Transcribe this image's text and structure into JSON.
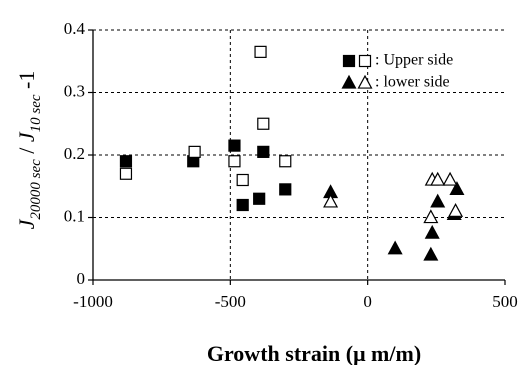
{
  "chart_data": {
    "type": "scatter",
    "xlabel": "Growth strain (μ m/m)",
    "ylabel_parts": [
      "J",
      "20000 sec",
      " / ",
      "J",
      "10 sec",
      " -1"
    ],
    "xlim": [
      -1000,
      500
    ],
    "ylim": [
      0,
      0.4
    ],
    "x_ticks": [
      -1000,
      -500,
      0,
      500
    ],
    "x_tick_labels": [
      "-1000",
      "-500",
      "0",
      "500"
    ],
    "y_ticks": [
      0,
      0.1,
      0.2,
      0.3,
      0.4
    ],
    "y_tick_labels": [
      "0",
      "0.1",
      "0.2",
      "0.3",
      "0.4"
    ],
    "grid": "dashed",
    "legend_position": "top-right",
    "legend": [
      {
        "label": ": Upper side",
        "markers": [
          "square-filled",
          "square-open"
        ]
      },
      {
        "label": ": lower side",
        "markers": [
          "triangle-filled",
          "triangle-open"
        ]
      }
    ],
    "series": [
      {
        "name": "Upper side (filled)",
        "marker": "square-filled",
        "points": [
          {
            "x": -880,
            "y": 0.19
          },
          {
            "x": -635,
            "y": 0.19
          },
          {
            "x": -485,
            "y": 0.215
          },
          {
            "x": -455,
            "y": 0.12
          },
          {
            "x": -395,
            "y": 0.13
          },
          {
            "x": -380,
            "y": 0.205
          },
          {
            "x": -300,
            "y": 0.145
          }
        ]
      },
      {
        "name": "Upper side (open)",
        "marker": "square-open",
        "points": [
          {
            "x": -880,
            "y": 0.17
          },
          {
            "x": -630,
            "y": 0.205
          },
          {
            "x": -485,
            "y": 0.19
          },
          {
            "x": -455,
            "y": 0.16
          },
          {
            "x": -390,
            "y": 0.365
          },
          {
            "x": -380,
            "y": 0.25
          },
          {
            "x": -300,
            "y": 0.19
          }
        ]
      },
      {
        "name": "Lower side (filled)",
        "marker": "triangle-filled",
        "points": [
          {
            "x": -135,
            "y": 0.14
          },
          {
            "x": 100,
            "y": 0.05
          },
          {
            "x": 230,
            "y": 0.04
          },
          {
            "x": 235,
            "y": 0.075
          },
          {
            "x": 255,
            "y": 0.125
          },
          {
            "x": 315,
            "y": 0.105
          },
          {
            "x": 325,
            "y": 0.145
          }
        ]
      },
      {
        "name": "Lower side (open)",
        "marker": "triangle-open",
        "points": [
          {
            "x": -135,
            "y": 0.125
          },
          {
            "x": 230,
            "y": 0.1
          },
          {
            "x": 235,
            "y": 0.16
          },
          {
            "x": 255,
            "y": 0.16
          },
          {
            "x": 300,
            "y": 0.16
          },
          {
            "x": 320,
            "y": 0.11
          }
        ]
      }
    ]
  }
}
